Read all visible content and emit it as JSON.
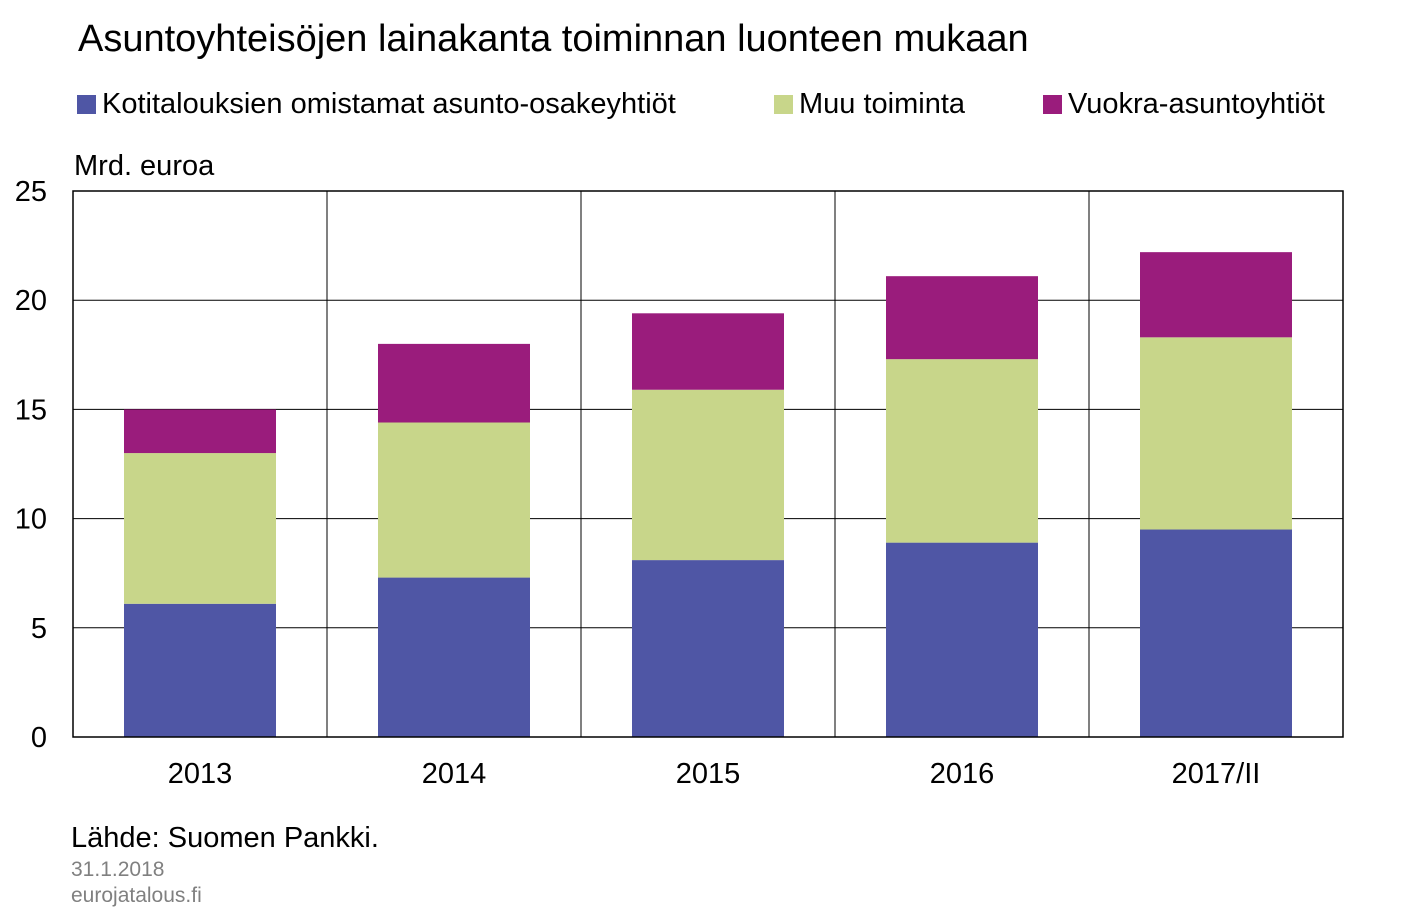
{
  "chart_data": {
    "type": "bar",
    "stacked": true,
    "title": "Asuntoyhteisöjen lainakanta toiminnan luonteen mukaan",
    "ylabel": "Mrd. euroa",
    "xlabel": "",
    "categories": [
      "2013",
      "2014",
      "2015",
      "2016",
      "2017/II"
    ],
    "series": [
      {
        "name": "Kotitalouksien omistamat asunto-osakeyhtiöt",
        "color": "#4f56a5",
        "values": [
          6.1,
          7.3,
          8.1,
          8.9,
          9.5
        ]
      },
      {
        "name": "Muu toiminta",
        "color": "#c8d68a",
        "values": [
          6.9,
          7.1,
          7.8,
          8.4,
          8.8
        ]
      },
      {
        "name": "Vuokra-asuntoyhtiöt",
        "color": "#9a1c7c",
        "values": [
          2.0,
          3.6,
          3.5,
          3.8,
          3.9
        ]
      }
    ],
    "ylim": [
      0,
      25
    ],
    "yticks": [
      "0",
      "5",
      "10",
      "15",
      "20",
      "25"
    ],
    "grid": true,
    "legend_position": "top"
  },
  "source": "Lähde: Suomen Pankki.",
  "date": "31.1.2018",
  "site": "eurojatalous.fi"
}
